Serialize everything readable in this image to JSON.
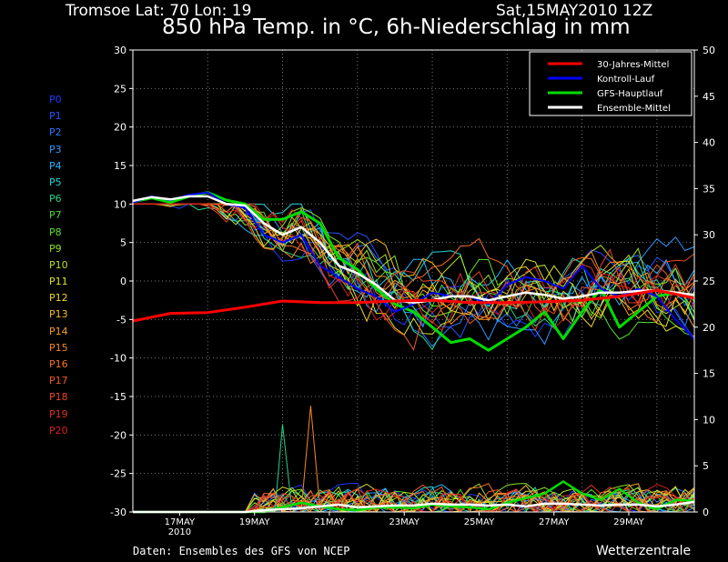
{
  "header": {
    "station": "Tromsoe  Lat: 70 Lon: 19",
    "run": "Sat,15MAY2010 12Z",
    "title": "850 hPa Temp. in °C, 6h-Niederschlag in mm"
  },
  "footer": {
    "source": "Daten: Ensembles des GFS von NCEP",
    "brand": "Wetterzentrale"
  },
  "members": [
    {
      "label": "P0",
      "color": "#1a3cff"
    },
    {
      "label": "P1",
      "color": "#2a50ff"
    },
    {
      "label": "P2",
      "color": "#2e74ff"
    },
    {
      "label": "P3",
      "color": "#2f98ff"
    },
    {
      "label": "P4",
      "color": "#22b8ff"
    },
    {
      "label": "P5",
      "color": "#22d6d6"
    },
    {
      "label": "P6",
      "color": "#22d688"
    },
    {
      "label": "P7",
      "color": "#4cdc33"
    },
    {
      "label": "P8",
      "color": "#5ce02c"
    },
    {
      "label": "P9",
      "color": "#8ee028"
    },
    {
      "label": "P10",
      "color": "#b4e028"
    },
    {
      "label": "P11",
      "color": "#dce028"
    },
    {
      "label": "P12",
      "color": "#f0d828"
    },
    {
      "label": "P13",
      "color": "#f4bc28"
    },
    {
      "label": "P14",
      "color": "#f4a028"
    },
    {
      "label": "P15",
      "color": "#f48828"
    },
    {
      "label": "P16",
      "color": "#f47028"
    },
    {
      "label": "P17",
      "color": "#f05a28"
    },
    {
      "label": "P18",
      "color": "#e84528"
    },
    {
      "label": "P19",
      "color": "#e03028"
    },
    {
      "label": "P20",
      "color": "#d82020"
    }
  ],
  "chart_data": {
    "type": "line",
    "x_ticks": [
      "17MAY",
      "19MAY",
      "21MAY",
      "23MAY",
      "25MAY",
      "27MAY",
      "29MAY"
    ],
    "x_tick_year": "2010",
    "y_left": {
      "unit": "°C",
      "range": [
        -30,
        30
      ],
      "ticks": [
        30,
        25,
        20,
        15,
        10,
        5,
        0,
        -5,
        -10,
        -15,
        -20,
        -25,
        -30
      ]
    },
    "y_right": {
      "unit": "mm",
      "range": [
        0,
        50
      ],
      "ticks": [
        50,
        45,
        40,
        35,
        30,
        25,
        20,
        15,
        10,
        5,
        0
      ]
    },
    "grid": true,
    "legend_position": "top-right",
    "time_steps_days": [
      0,
      0.25,
      0.5,
      0.75,
      1,
      1.25,
      1.5,
      1.75,
      2,
      2.25,
      2.5,
      2.75,
      3,
      3.25,
      3.5,
      3.75,
      4,
      4.25,
      4.5,
      4.75,
      5,
      5.25,
      5.5,
      5.75,
      6,
      6.25,
      6.5,
      6.75,
      7,
      7.25,
      7.5,
      7.75,
      8,
      8.25,
      8.5,
      8.75,
      9,
      9.25,
      9.5,
      9.75,
      10,
      10.25,
      10.5,
      10.75,
      11,
      11.25,
      11.5,
      11.75,
      12,
      12.25,
      12.5,
      12.75,
      13,
      13.25,
      13.5,
      13.75,
      14,
      14.25,
      14.5,
      14.75,
      15
    ],
    "series": [
      {
        "name": "30-Jahres-Mittel",
        "color": "#ff0000",
        "width": 3,
        "x": [
          0,
          1,
          2,
          3,
          4,
          5,
          6,
          7,
          8,
          9,
          10,
          11,
          12,
          13,
          14,
          15
        ],
        "values": [
          -5.2,
          -4.2,
          -4.1,
          -3.4,
          -2.6,
          -2.8,
          -2.8,
          -2.6,
          -2.5,
          -2.8,
          -2.8,
          -2.7,
          -2.5,
          -2.0,
          -1.2,
          -2.2
        ]
      },
      {
        "name": "Kontroll-Lauf",
        "color": "#0000ff",
        "width": 2,
        "x": [
          0,
          0.5,
          1,
          1.5,
          2,
          2.5,
          3,
          3.5,
          4,
          4.5,
          5,
          5.5,
          6,
          6.5,
          7,
          7.5,
          8,
          8.5,
          9,
          9.5,
          10,
          10.5,
          11,
          11.5,
          12,
          12.5,
          13,
          13.5,
          14,
          14.5,
          15
        ],
        "values": [
          10.2,
          11,
          10.5,
          11.2,
          11.5,
          10,
          9.5,
          6,
          5,
          6,
          2,
          0.5,
          -1,
          -2,
          -4,
          -3,
          -1.5,
          -2,
          -2,
          -3,
          -0.5,
          0.5,
          0,
          -1,
          2,
          -1,
          -2,
          -1,
          -2,
          -5,
          -7.5
        ]
      },
      {
        "name": "GFS-Hauptlauf",
        "color": "#00dd00",
        "width": 3,
        "x": [
          0,
          0.5,
          1,
          1.5,
          2,
          2.5,
          3,
          3.5,
          4,
          4.5,
          5,
          5.5,
          6,
          6.5,
          7,
          7.5,
          8,
          8.5,
          9,
          9.5,
          10,
          10.5,
          11,
          11.5,
          12,
          12.5,
          13,
          13.5,
          14,
          14.5,
          15
        ],
        "values": [
          10.3,
          10.8,
          10.2,
          11,
          11.5,
          10.5,
          10,
          8,
          8,
          9,
          7.5,
          3,
          1.5,
          -1,
          -3,
          -4,
          -6,
          -8,
          -7.5,
          -9,
          -7.5,
          -6,
          -4,
          -7.5,
          -4,
          -1,
          -6,
          -4,
          -2,
          -1.5,
          -2
        ]
      },
      {
        "name": "Ensemble-Mittel",
        "color": "#ffffff",
        "width": 2.5,
        "x": [
          0,
          0.5,
          1,
          1.5,
          2,
          2.5,
          3,
          3.5,
          4,
          4.5,
          5,
          5.5,
          6,
          6.5,
          7,
          7.5,
          8,
          8.5,
          9,
          9.5,
          10,
          10.5,
          11,
          11.5,
          12,
          12.5,
          13,
          13.5,
          14,
          14.5,
          15
        ],
        "values": [
          10.4,
          10.9,
          10.6,
          11,
          11,
          10,
          9.8,
          7.5,
          6,
          7,
          5,
          2,
          1,
          -0.5,
          -2.5,
          -2.8,
          -2.5,
          -2,
          -2,
          -2.5,
          -2,
          -1.5,
          -1.8,
          -2.3,
          -2,
          -1.5,
          -1.5,
          -1.3,
          -1.2,
          -1.5,
          -1.8
        ]
      }
    ],
    "precip_ensemble_mean": {
      "color": "#ffffff",
      "x": [
        0,
        0.5,
        1,
        1.5,
        2,
        2.5,
        3,
        3.5,
        4,
        4.5,
        5,
        5.5,
        6,
        6.5,
        7,
        7.5,
        8,
        8.5,
        9,
        9.5,
        10,
        10.5,
        11,
        11.5,
        12,
        12.5,
        13,
        13.5,
        14,
        14.5,
        15
      ],
      "values": [
        0,
        0,
        0,
        0,
        0,
        0,
        0,
        0.2,
        0.3,
        0.4,
        0.6,
        0.8,
        0.5,
        0.6,
        0.7,
        0.7,
        0.9,
        0.8,
        0.8,
        0.7,
        0.8,
        0.6,
        0.9,
        0.9,
        0.8,
        0.7,
        0.8,
        0.8,
        0.6,
        0.8,
        1.1
      ]
    },
    "precip_main_run": {
      "color": "#00dd00",
      "x": [
        0,
        0.5,
        1,
        1.5,
        2,
        2.5,
        3,
        3.5,
        4,
        4.5,
        5,
        5.5,
        6,
        6.5,
        7,
        7.5,
        8,
        8.5,
        9,
        9.5,
        10,
        10.5,
        11,
        11.5,
        12,
        12.5,
        13,
        13.5,
        14,
        14.5,
        15
      ],
      "values": [
        0,
        0,
        0,
        0,
        0,
        0,
        0,
        0,
        0.5,
        1,
        0.6,
        0.3,
        0.2,
        0.5,
        0.5,
        0.4,
        0.8,
        0.6,
        0.5,
        0.3,
        1,
        1.5,
        2,
        3.3,
        2,
        1.3,
        2.5,
        1,
        0.3,
        1.3,
        1.2
      ]
    },
    "legend": [
      "30-Jahres-Mittel",
      "Kontroll-Lauf",
      "GFS-Hauptlauf",
      "Ensemble-Mittel"
    ]
  }
}
